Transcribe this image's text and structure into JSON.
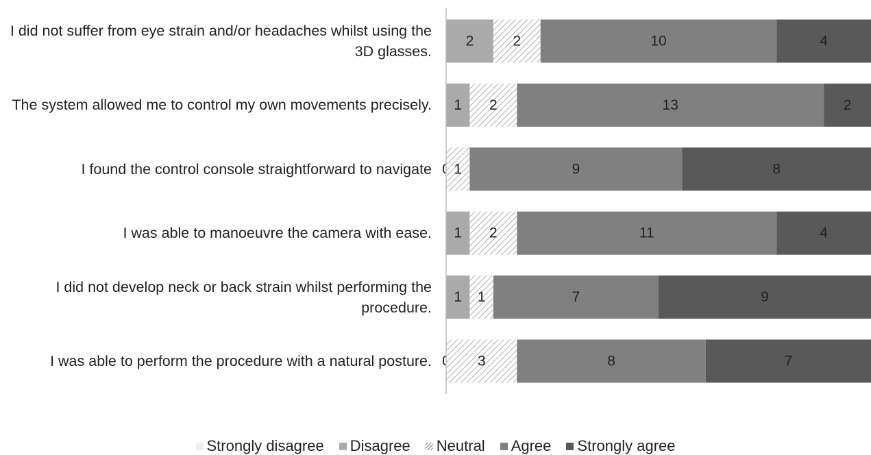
{
  "chart_data": {
    "type": "stacked_bar_horizontal",
    "categories": [
      "I did not suffer from eye strain and/or headaches whilst using the 3D glasses.",
      "The system allowed me to control my own movements precisely.",
      "I found the control console straightforward to navigate",
      "I was able to manoeuvre the camera with ease.",
      "I did not develop neck or back strain whilst performing the procedure.",
      "I was able to perform the procedure with a natural posture."
    ],
    "series": [
      {
        "name": "Strongly disagree",
        "color": "#eeeeee",
        "values": [
          0,
          0,
          0,
          0,
          0,
          0
        ],
        "show_labels": false
      },
      {
        "name": "Disagree",
        "color": "#aaaaaa",
        "values": [
          2,
          1,
          0,
          1,
          1,
          0
        ]
      },
      {
        "name": "Neutral",
        "color": "#999999",
        "pattern": "hatch",
        "values": [
          2,
          2,
          1,
          2,
          1,
          3
        ]
      },
      {
        "name": "Agree",
        "color": "#808080",
        "values": [
          10,
          13,
          9,
          11,
          7,
          8
        ]
      },
      {
        "name": "Strongly agree",
        "color": "#595959",
        "values": [
          4,
          2,
          8,
          4,
          9,
          7
        ]
      }
    ],
    "xlim": [
      0,
      18
    ],
    "legend": "bottom"
  }
}
